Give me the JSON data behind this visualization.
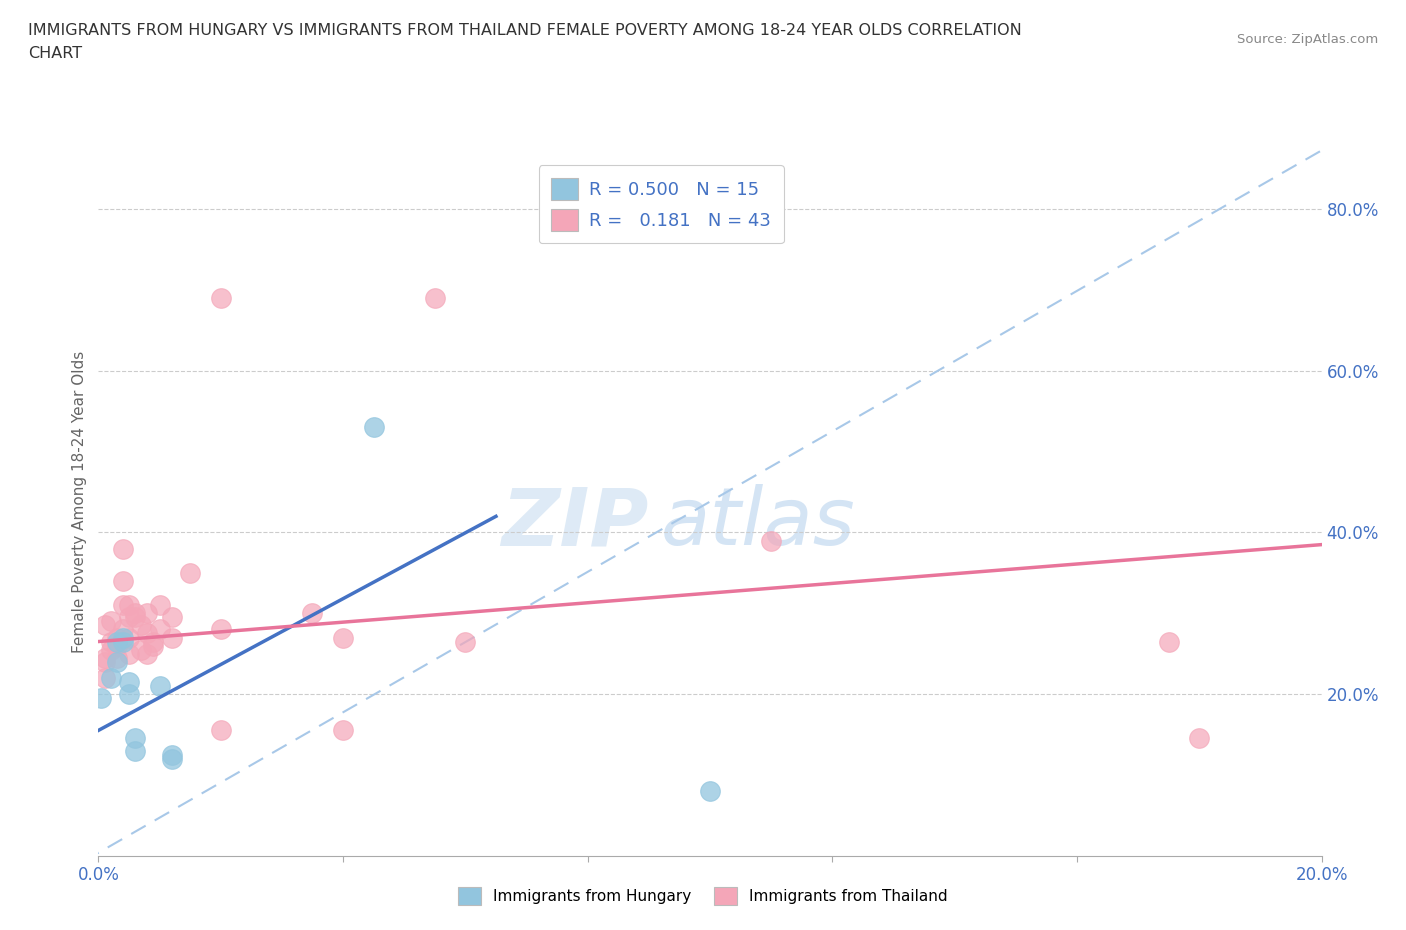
{
  "title_line1": "IMMIGRANTS FROM HUNGARY VS IMMIGRANTS FROM THAILAND FEMALE POVERTY AMONG 18-24 YEAR OLDS CORRELATION",
  "title_line2": "CHART",
  "source_text": "Source: ZipAtlas.com",
  "ylabel": "Female Poverty Among 18-24 Year Olds",
  "xlim": [
    0.0,
    0.2
  ],
  "ylim": [
    0.0,
    0.875
  ],
  "yticks_right": [
    0.2,
    0.4,
    0.6,
    0.8
  ],
  "ytick_labels_right": [
    "20.0%",
    "40.0%",
    "60.0%",
    "80.0%"
  ],
  "xticks": [
    0.0,
    0.04,
    0.08,
    0.12,
    0.16,
    0.2
  ],
  "xtick_labels_show": [
    "0.0%",
    "",
    "",
    "",
    "",
    "20.0%"
  ],
  "hungary_color": "#92C5DE",
  "hungary_line_color": "#4472C4",
  "thailand_color": "#F4A6B8",
  "thailand_line_color": "#E8749A",
  "diag_color": "#A8C8E8",
  "hungary_R": 0.5,
  "hungary_N": 15,
  "thailand_R": 0.181,
  "thailand_N": 43,
  "legend_label_hungary": "Immigrants from Hungary",
  "legend_label_thailand": "Immigrants from Thailand",
  "watermark_zip": "ZIP",
  "watermark_atlas": "atlas",
  "background_color": "#ffffff",
  "hungary_x": [
    0.0005,
    0.002,
    0.003,
    0.003,
    0.004,
    0.004,
    0.005,
    0.005,
    0.006,
    0.006,
    0.01,
    0.012,
    0.012,
    0.045,
    0.1
  ],
  "hungary_y": [
    0.195,
    0.22,
    0.265,
    0.24,
    0.27,
    0.265,
    0.2,
    0.215,
    0.145,
    0.13,
    0.21,
    0.125,
    0.12,
    0.53,
    0.08
  ],
  "thailand_x": [
    0.001,
    0.001,
    0.001,
    0.001,
    0.002,
    0.002,
    0.002,
    0.003,
    0.003,
    0.003,
    0.004,
    0.004,
    0.004,
    0.004,
    0.005,
    0.005,
    0.005,
    0.005,
    0.006,
    0.006,
    0.007,
    0.007,
    0.008,
    0.008,
    0.008,
    0.009,
    0.009,
    0.01,
    0.01,
    0.012,
    0.012,
    0.015,
    0.02,
    0.02,
    0.02,
    0.035,
    0.04,
    0.04,
    0.055,
    0.06,
    0.11,
    0.175,
    0.18
  ],
  "thailand_y": [
    0.285,
    0.245,
    0.24,
    0.22,
    0.29,
    0.265,
    0.255,
    0.27,
    0.26,
    0.245,
    0.38,
    0.34,
    0.31,
    0.28,
    0.31,
    0.295,
    0.27,
    0.25,
    0.3,
    0.295,
    0.285,
    0.255,
    0.3,
    0.275,
    0.25,
    0.265,
    0.26,
    0.31,
    0.28,
    0.295,
    0.27,
    0.35,
    0.69,
    0.28,
    0.155,
    0.3,
    0.27,
    0.155,
    0.69,
    0.265,
    0.39,
    0.265,
    0.145
  ],
  "hungary_line_x0": 0.0,
  "hungary_line_y0": 0.155,
  "hungary_line_x1": 0.065,
  "hungary_line_y1": 0.42,
  "thailand_line_x0": 0.0,
  "thailand_line_y0": 0.265,
  "thailand_line_x1": 0.2,
  "thailand_line_y1": 0.385
}
